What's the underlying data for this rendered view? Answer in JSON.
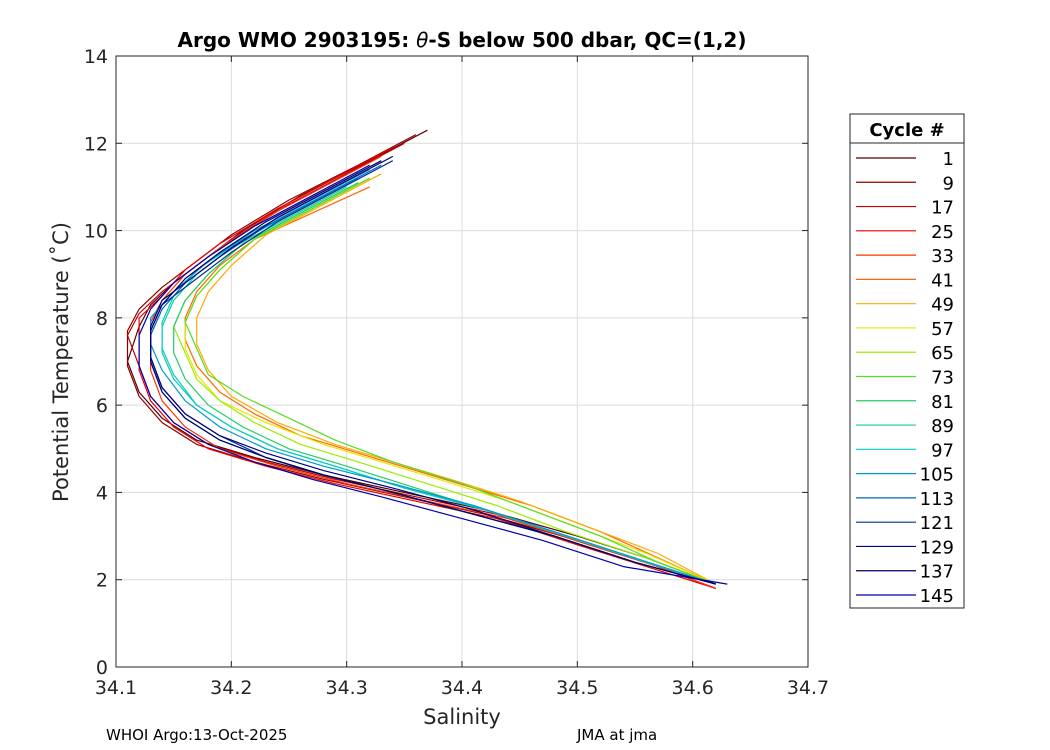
{
  "chart_data": {
    "type": "line",
    "title_prefix": "Argo WMO 2903195: ",
    "title_theta": "θ",
    "title_suffix": "-S below 500 dbar,  QC=(1,2)",
    "xlabel": "Salinity",
    "ylabel": "Potential Temperature (˚C)",
    "xlim": [
      34.1,
      34.7
    ],
    "ylim": [
      0,
      14
    ],
    "xticks": [
      34.1,
      34.2,
      34.3,
      34.4,
      34.5,
      34.6,
      34.7
    ],
    "yticks": [
      0,
      2,
      4,
      6,
      8,
      10,
      12,
      14
    ],
    "xtick_labels": [
      "34.1",
      "34.2",
      "34.3",
      "34.4",
      "34.5",
      "34.6",
      "34.7"
    ],
    "ytick_labels": [
      "0",
      "2",
      "4",
      "6",
      "8",
      "10",
      "12",
      "14"
    ],
    "grid": true,
    "legend_position": "right",
    "legend_title": "Cycle #",
    "series": [
      {
        "name": "1",
        "color": "#5a0000",
        "s": [
          34.37,
          34.32,
          34.26,
          34.21,
          34.18,
          34.15,
          34.13,
          34.12,
          34.11,
          34.12,
          34.14,
          34.17,
          34.22,
          34.28,
          34.35,
          34.42,
          34.5,
          34.56,
          34.62
        ],
        "t": [
          12.3,
          11.6,
          10.8,
          10.0,
          9.4,
          8.8,
          8.3,
          7.8,
          7.0,
          6.3,
          5.7,
          5.2,
          4.8,
          4.4,
          4.0,
          3.6,
          3.0,
          2.5,
          1.9
        ]
      },
      {
        "name": "9",
        "color": "#8b0000",
        "s": [
          34.36,
          34.31,
          34.25,
          34.2,
          34.17,
          34.14,
          34.12,
          34.11,
          34.11,
          34.12,
          34.14,
          34.17,
          34.22,
          34.28,
          34.35,
          34.42,
          34.5,
          34.56,
          34.62
        ],
        "t": [
          12.2,
          11.5,
          10.7,
          9.9,
          9.3,
          8.7,
          8.2,
          7.7,
          6.9,
          6.2,
          5.6,
          5.1,
          4.7,
          4.3,
          3.9,
          3.5,
          2.9,
          2.4,
          1.8
        ]
      },
      {
        "name": "17",
        "color": "#c00000",
        "s": [
          34.35,
          34.3,
          34.25,
          34.2,
          34.17,
          34.14,
          34.12,
          34.11,
          34.12,
          34.13,
          34.15,
          34.18,
          34.23,
          34.29,
          34.36,
          34.43,
          34.5,
          34.56,
          34.62
        ],
        "t": [
          12.0,
          11.3,
          10.6,
          9.8,
          9.2,
          8.6,
          8.1,
          7.6,
          6.9,
          6.2,
          5.6,
          5.1,
          4.7,
          4.3,
          3.9,
          3.5,
          2.9,
          2.4,
          1.8
        ]
      },
      {
        "name": "25",
        "color": "#ee0000",
        "s": [
          34.34,
          34.29,
          34.24,
          34.19,
          34.16,
          34.14,
          34.12,
          34.12,
          34.12,
          34.13,
          34.15,
          34.18,
          34.23,
          34.29,
          34.36,
          34.43,
          34.5,
          34.56,
          34.62
        ],
        "t": [
          11.9,
          11.2,
          10.5,
          9.7,
          9.1,
          8.5,
          8.0,
          7.5,
          6.8,
          6.1,
          5.5,
          5.0,
          4.6,
          4.2,
          3.8,
          3.4,
          2.8,
          2.3,
          1.8
        ]
      },
      {
        "name": "33",
        "color": "#ff3300",
        "s": [
          34.33,
          34.28,
          34.23,
          34.19,
          34.16,
          34.14,
          34.13,
          34.13,
          34.13,
          34.14,
          34.16,
          34.19,
          34.24,
          34.3,
          34.37,
          34.44,
          34.51,
          34.57,
          34.62
        ],
        "t": [
          11.7,
          11.0,
          10.3,
          9.6,
          9.0,
          8.4,
          7.9,
          7.4,
          6.8,
          6.1,
          5.5,
          5.0,
          4.6,
          4.2,
          3.8,
          3.4,
          2.8,
          2.3,
          1.8
        ]
      },
      {
        "name": "41",
        "color": "#ff6600",
        "s": [
          34.32,
          34.27,
          34.22,
          34.19,
          34.17,
          34.16,
          34.16,
          34.17,
          34.19,
          34.22,
          34.26,
          34.31,
          34.36,
          34.41,
          34.46,
          34.52,
          34.57,
          34.62
        ],
        "t": [
          11.0,
          10.4,
          9.8,
          9.2,
          8.6,
          8.0,
          7.5,
          6.9,
          6.3,
          5.8,
          5.3,
          4.9,
          4.5,
          4.1,
          3.7,
          3.1,
          2.5,
          1.9
        ]
      },
      {
        "name": "49",
        "color": "#ffaa00",
        "s": [
          34.33,
          34.28,
          34.23,
          34.2,
          34.18,
          34.17,
          34.17,
          34.18,
          34.2,
          34.24,
          34.29,
          34.34,
          34.39,
          34.45,
          34.51,
          34.57,
          34.62
        ],
        "t": [
          11.3,
          10.6,
          9.9,
          9.2,
          8.6,
          8.0,
          7.4,
          6.8,
          6.2,
          5.6,
          5.1,
          4.7,
          4.3,
          3.8,
          3.2,
          2.6,
          1.9
        ]
      },
      {
        "name": "57",
        "color": "#e6e600",
        "s": [
          34.32,
          34.27,
          34.22,
          34.19,
          34.17,
          34.16,
          34.16,
          34.17,
          34.19,
          34.23,
          34.28,
          34.33,
          34.38,
          34.44,
          34.5,
          34.56,
          34.62
        ],
        "t": [
          11.2,
          10.5,
          9.8,
          9.1,
          8.5,
          7.9,
          7.3,
          6.7,
          6.1,
          5.6,
          5.1,
          4.7,
          4.3,
          3.8,
          3.2,
          2.6,
          1.9
        ]
      },
      {
        "name": "65",
        "color": "#99ee00",
        "s": [
          34.31,
          34.26,
          34.21,
          34.18,
          34.16,
          34.15,
          34.16,
          34.17,
          34.19,
          34.22,
          34.26,
          34.31,
          34.37,
          34.43,
          34.49,
          34.56,
          34.62
        ],
        "t": [
          11.1,
          10.4,
          9.7,
          9.0,
          8.4,
          7.8,
          7.2,
          6.6,
          6.1,
          5.6,
          5.1,
          4.7,
          4.2,
          3.7,
          3.1,
          2.5,
          1.9
        ]
      },
      {
        "name": "73",
        "color": "#55dd22",
        "s": [
          34.32,
          34.27,
          34.22,
          34.19,
          34.17,
          34.16,
          34.17,
          34.18,
          34.21,
          34.25,
          34.29,
          34.34,
          34.4,
          34.46,
          34.52,
          34.57,
          34.62
        ],
        "t": [
          11.2,
          10.5,
          9.8,
          9.1,
          8.5,
          7.9,
          7.3,
          6.7,
          6.2,
          5.7,
          5.2,
          4.7,
          4.2,
          3.6,
          3.0,
          2.4,
          1.9
        ]
      },
      {
        "name": "81",
        "color": "#22cc66",
        "s": [
          34.31,
          34.26,
          34.21,
          34.18,
          34.16,
          34.15,
          34.15,
          34.16,
          34.18,
          34.21,
          34.25,
          34.3,
          34.36,
          34.42,
          34.49,
          34.56,
          34.62
        ],
        "t": [
          11.1,
          10.4,
          9.7,
          9.0,
          8.4,
          7.8,
          7.2,
          6.6,
          6.0,
          5.5,
          5.0,
          4.6,
          4.1,
          3.6,
          3.0,
          2.4,
          1.9
        ]
      },
      {
        "name": "89",
        "color": "#11cc99",
        "s": [
          34.3,
          34.25,
          34.2,
          34.17,
          34.15,
          34.14,
          34.14,
          34.15,
          34.17,
          34.2,
          34.24,
          34.29,
          34.35,
          34.42,
          34.49,
          34.56,
          34.62
        ],
        "t": [
          11.0,
          10.3,
          9.6,
          9.0,
          8.4,
          7.8,
          7.2,
          6.6,
          6.0,
          5.5,
          5.0,
          4.6,
          4.1,
          3.6,
          3.0,
          2.4,
          1.9
        ]
      },
      {
        "name": "97",
        "color": "#00cccc",
        "s": [
          34.31,
          34.26,
          34.21,
          34.17,
          34.15,
          34.14,
          34.14,
          34.15,
          34.17,
          34.2,
          34.24,
          34.29,
          34.35,
          34.42,
          34.49,
          34.56,
          34.62
        ],
        "t": [
          11.2,
          10.5,
          9.8,
          9.1,
          8.5,
          7.9,
          7.3,
          6.7,
          6.0,
          5.5,
          5.0,
          4.6,
          4.1,
          3.6,
          3.0,
          2.4,
          1.9
        ]
      },
      {
        "name": "105",
        "color": "#0099cc",
        "s": [
          34.32,
          34.27,
          34.22,
          34.18,
          34.15,
          34.13,
          34.13,
          34.14,
          34.16,
          34.19,
          34.23,
          34.28,
          34.34,
          34.41,
          34.48,
          34.55,
          34.62
        ],
        "t": [
          11.4,
          10.7,
          10.0,
          9.3,
          8.6,
          8.0,
          7.4,
          6.8,
          6.1,
          5.5,
          5.0,
          4.6,
          4.2,
          3.7,
          3.1,
          2.5,
          1.9
        ]
      },
      {
        "name": "113",
        "color": "#0066bb",
        "s": [
          34.33,
          34.28,
          34.23,
          34.19,
          34.16,
          34.14,
          34.13,
          34.13,
          34.14,
          34.16,
          34.19,
          34.23,
          34.28,
          34.34,
          34.41,
          34.48,
          34.55,
          34.62
        ],
        "t": [
          11.5,
          10.8,
          10.1,
          9.4,
          8.8,
          8.2,
          7.6,
          7.0,
          6.3,
          5.7,
          5.2,
          4.8,
          4.4,
          4.0,
          3.5,
          3.0,
          2.4,
          1.9
        ]
      },
      {
        "name": "121",
        "color": "#003399",
        "s": [
          34.34,
          34.29,
          34.24,
          34.2,
          34.17,
          34.14,
          34.13,
          34.13,
          34.14,
          34.16,
          34.19,
          34.23,
          34.28,
          34.34,
          34.41,
          34.48,
          34.55,
          34.62
        ],
        "t": [
          11.6,
          10.9,
          10.2,
          9.5,
          8.9,
          8.3,
          7.7,
          7.1,
          6.4,
          5.8,
          5.3,
          4.8,
          4.4,
          4.0,
          3.5,
          3.0,
          2.4,
          1.9
        ]
      },
      {
        "name": "129",
        "color": "#000080",
        "s": [
          34.34,
          34.29,
          34.24,
          34.2,
          34.17,
          34.14,
          34.13,
          34.13,
          34.14,
          34.16,
          34.19,
          34.23,
          34.28,
          34.34,
          34.41,
          34.48,
          34.55,
          34.62
        ],
        "t": [
          11.7,
          11.0,
          10.3,
          9.6,
          9.0,
          8.4,
          7.8,
          7.1,
          6.4,
          5.8,
          5.3,
          4.9,
          4.5,
          4.1,
          3.6,
          3.0,
          2.4,
          1.9
        ]
      },
      {
        "name": "137",
        "color": "#000066",
        "s": [
          34.33,
          34.28,
          34.23,
          34.19,
          34.16,
          34.14,
          34.13,
          34.13,
          34.14,
          34.16,
          34.19,
          34.23,
          34.28,
          34.34,
          34.41,
          34.48,
          34.55,
          34.62
        ],
        "t": [
          11.6,
          10.9,
          10.2,
          9.5,
          8.9,
          8.3,
          7.7,
          7.0,
          6.3,
          5.7,
          5.2,
          4.8,
          4.4,
          4.0,
          3.5,
          3.0,
          2.4,
          1.9
        ]
      },
      {
        "name": "145",
        "color": "#0000aa",
        "s": [
          34.32,
          34.27,
          34.22,
          34.18,
          34.15,
          34.13,
          34.12,
          34.12,
          34.13,
          34.15,
          34.18,
          34.22,
          34.27,
          34.33,
          34.4,
          34.47,
          34.54,
          34.63
        ],
        "t": [
          11.5,
          10.8,
          10.1,
          9.4,
          8.8,
          8.2,
          7.6,
          6.9,
          6.2,
          5.6,
          5.1,
          4.7,
          4.3,
          3.9,
          3.4,
          2.9,
          2.3,
          1.9
        ]
      }
    ]
  },
  "footer": {
    "left": "WHOI Argo:13-Oct-2025",
    "right": "JMA at jma"
  }
}
